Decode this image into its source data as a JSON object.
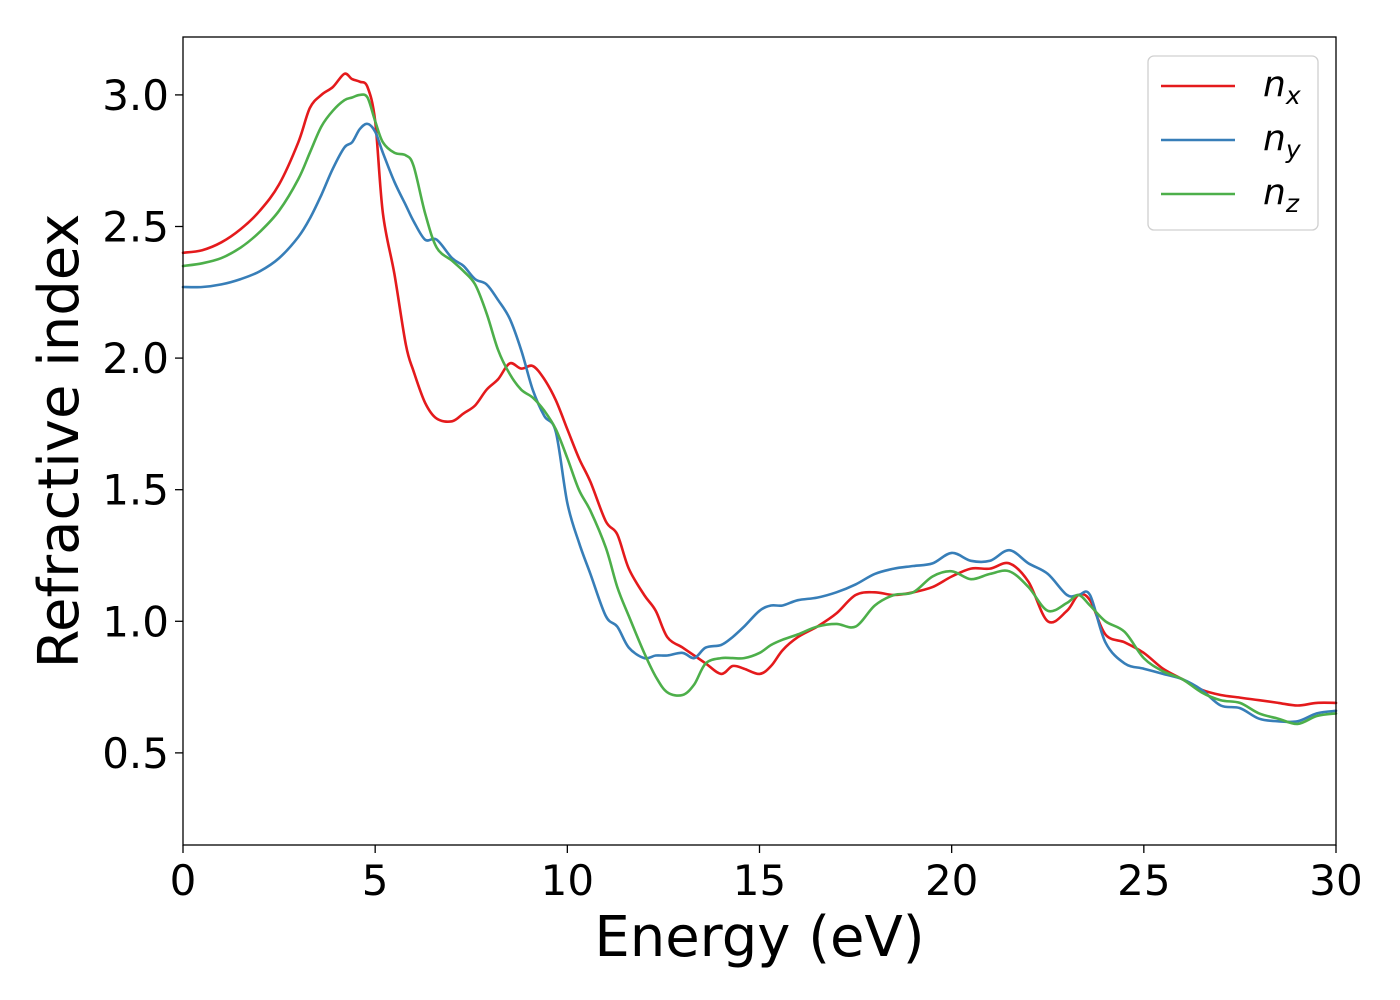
{
  "chart_data": {
    "type": "line",
    "xlabel": "Energy (eV)",
    "ylabel": "Refractive index",
    "xlim": [
      0,
      30
    ],
    "ylim": [
      0.15,
      3.22
    ],
    "x_ticks": [
      0,
      5,
      10,
      15,
      20,
      25,
      30
    ],
    "y_ticks": [
      0.5,
      1.0,
      1.5,
      2.0,
      2.5,
      3.0
    ],
    "x_tick_labels": [
      "0",
      "5",
      "10",
      "15",
      "20",
      "25",
      "30"
    ],
    "y_tick_labels": [
      "0.5",
      "1.0",
      "1.5",
      "2.0",
      "2.5",
      "3.0"
    ],
    "grid": false,
    "legend_position": "top-right",
    "series": [
      {
        "name": "n_x",
        "label_main": "n",
        "label_sub": "x",
        "color": "#e41a1c",
        "x": [
          0,
          0.5,
          1,
          1.5,
          2,
          2.5,
          3,
          3.3,
          3.6,
          3.9,
          4.2,
          4.4,
          4.6,
          4.8,
          5,
          5.2,
          5.5,
          5.8,
          6,
          6.3,
          6.6,
          7,
          7.3,
          7.6,
          7.9,
          8.2,
          8.5,
          8.8,
          9.1,
          9.4,
          9.7,
          10,
          10.3,
          10.6,
          11,
          11.3,
          11.6,
          12,
          12.3,
          12.6,
          13,
          13.3,
          13.6,
          14,
          14.3,
          14.6,
          15,
          15.3,
          15.6,
          16,
          16.5,
          17,
          17.5,
          18,
          18.5,
          19,
          19.5,
          20,
          20.5,
          21,
          21.5,
          22,
          22.5,
          23,
          23.3,
          23.6,
          24,
          24.5,
          25,
          25.5,
          26,
          26.5,
          27,
          27.5,
          28,
          28.5,
          29,
          29.5,
          30
        ],
        "y": [
          2.4,
          2.41,
          2.44,
          2.49,
          2.56,
          2.66,
          2.82,
          2.95,
          3.0,
          3.03,
          3.08,
          3.06,
          3.05,
          3.03,
          2.9,
          2.55,
          2.32,
          2.05,
          1.95,
          1.83,
          1.77,
          1.76,
          1.79,
          1.82,
          1.88,
          1.92,
          1.98,
          1.96,
          1.97,
          1.92,
          1.84,
          1.73,
          1.62,
          1.53,
          1.38,
          1.33,
          1.2,
          1.1,
          1.04,
          0.94,
          0.9,
          0.87,
          0.84,
          0.8,
          0.83,
          0.82,
          0.8,
          0.83,
          0.89,
          0.94,
          0.98,
          1.03,
          1.1,
          1.11,
          1.1,
          1.11,
          1.13,
          1.17,
          1.2,
          1.2,
          1.22,
          1.15,
          1.0,
          1.04,
          1.1,
          1.08,
          0.95,
          0.92,
          0.88,
          0.82,
          0.78,
          0.74,
          0.72,
          0.71,
          0.7,
          0.69,
          0.68,
          0.69,
          0.69
        ]
      },
      {
        "name": "n_y",
        "label_main": "n",
        "label_sub": "y",
        "color": "#377eb8",
        "x": [
          0,
          0.5,
          1,
          1.5,
          2,
          2.5,
          3,
          3.3,
          3.6,
          3.9,
          4.2,
          4.4,
          4.6,
          4.8,
          5,
          5.2,
          5.5,
          5.8,
          6,
          6.3,
          6.6,
          7,
          7.3,
          7.6,
          7.9,
          8.2,
          8.5,
          8.8,
          9.1,
          9.4,
          9.7,
          10,
          10.3,
          10.6,
          11,
          11.3,
          11.6,
          12,
          12.3,
          12.6,
          13,
          13.3,
          13.6,
          14,
          14.3,
          14.6,
          15,
          15.3,
          15.6,
          16,
          16.5,
          17,
          17.5,
          18,
          18.5,
          19,
          19.5,
          20,
          20.5,
          21,
          21.5,
          22,
          22.5,
          23,
          23.3,
          23.6,
          24,
          24.5,
          25,
          25.5,
          26,
          26.5,
          27,
          27.5,
          28,
          28.5,
          29,
          29.5,
          30
        ],
        "y": [
          2.27,
          2.27,
          2.28,
          2.3,
          2.33,
          2.38,
          2.46,
          2.53,
          2.62,
          2.72,
          2.8,
          2.82,
          2.87,
          2.89,
          2.86,
          2.78,
          2.67,
          2.58,
          2.52,
          2.45,
          2.45,
          2.38,
          2.35,
          2.3,
          2.28,
          2.22,
          2.15,
          2.03,
          1.88,
          1.78,
          1.72,
          1.45,
          1.3,
          1.18,
          1.02,
          0.98,
          0.9,
          0.86,
          0.87,
          0.87,
          0.88,
          0.86,
          0.9,
          0.91,
          0.94,
          0.98,
          1.04,
          1.06,
          1.06,
          1.08,
          1.09,
          1.11,
          1.14,
          1.18,
          1.2,
          1.21,
          1.22,
          1.26,
          1.23,
          1.23,
          1.27,
          1.22,
          1.18,
          1.1,
          1.1,
          1.1,
          0.92,
          0.84,
          0.82,
          0.8,
          0.78,
          0.74,
          0.68,
          0.67,
          0.63,
          0.62,
          0.62,
          0.65,
          0.66
        ]
      },
      {
        "name": "n_z",
        "label_main": "n",
        "label_sub": "z",
        "color": "#4daf4a",
        "x": [
          0,
          0.5,
          1,
          1.5,
          2,
          2.5,
          3,
          3.3,
          3.6,
          3.9,
          4.2,
          4.4,
          4.6,
          4.8,
          5,
          5.2,
          5.5,
          5.8,
          6,
          6.3,
          6.6,
          7,
          7.3,
          7.6,
          7.9,
          8.2,
          8.5,
          8.8,
          9.1,
          9.4,
          9.7,
          10,
          10.3,
          10.6,
          11,
          11.3,
          11.6,
          12,
          12.3,
          12.6,
          13,
          13.3,
          13.6,
          14,
          14.3,
          14.6,
          15,
          15.3,
          15.6,
          16,
          16.5,
          17,
          17.5,
          18,
          18.5,
          19,
          19.5,
          20,
          20.5,
          21,
          21.5,
          22,
          22.5,
          23,
          23.3,
          23.6,
          24,
          24.5,
          25,
          25.5,
          26,
          26.5,
          27,
          27.5,
          28,
          28.5,
          29,
          29.5,
          30
        ],
        "y": [
          2.35,
          2.36,
          2.38,
          2.42,
          2.48,
          2.56,
          2.68,
          2.78,
          2.88,
          2.94,
          2.98,
          2.99,
          3.0,
          2.99,
          2.9,
          2.82,
          2.78,
          2.77,
          2.73,
          2.55,
          2.42,
          2.37,
          2.33,
          2.28,
          2.17,
          2.03,
          1.94,
          1.88,
          1.85,
          1.8,
          1.73,
          1.62,
          1.5,
          1.42,
          1.28,
          1.13,
          1.02,
          0.88,
          0.79,
          0.73,
          0.72,
          0.76,
          0.84,
          0.86,
          0.86,
          0.86,
          0.88,
          0.91,
          0.93,
          0.95,
          0.98,
          0.99,
          0.98,
          1.06,
          1.1,
          1.11,
          1.17,
          1.19,
          1.16,
          1.18,
          1.19,
          1.13,
          1.04,
          1.07,
          1.1,
          1.06,
          1.0,
          0.96,
          0.86,
          0.81,
          0.78,
          0.73,
          0.7,
          0.69,
          0.65,
          0.63,
          0.61,
          0.64,
          0.65
        ]
      }
    ]
  }
}
